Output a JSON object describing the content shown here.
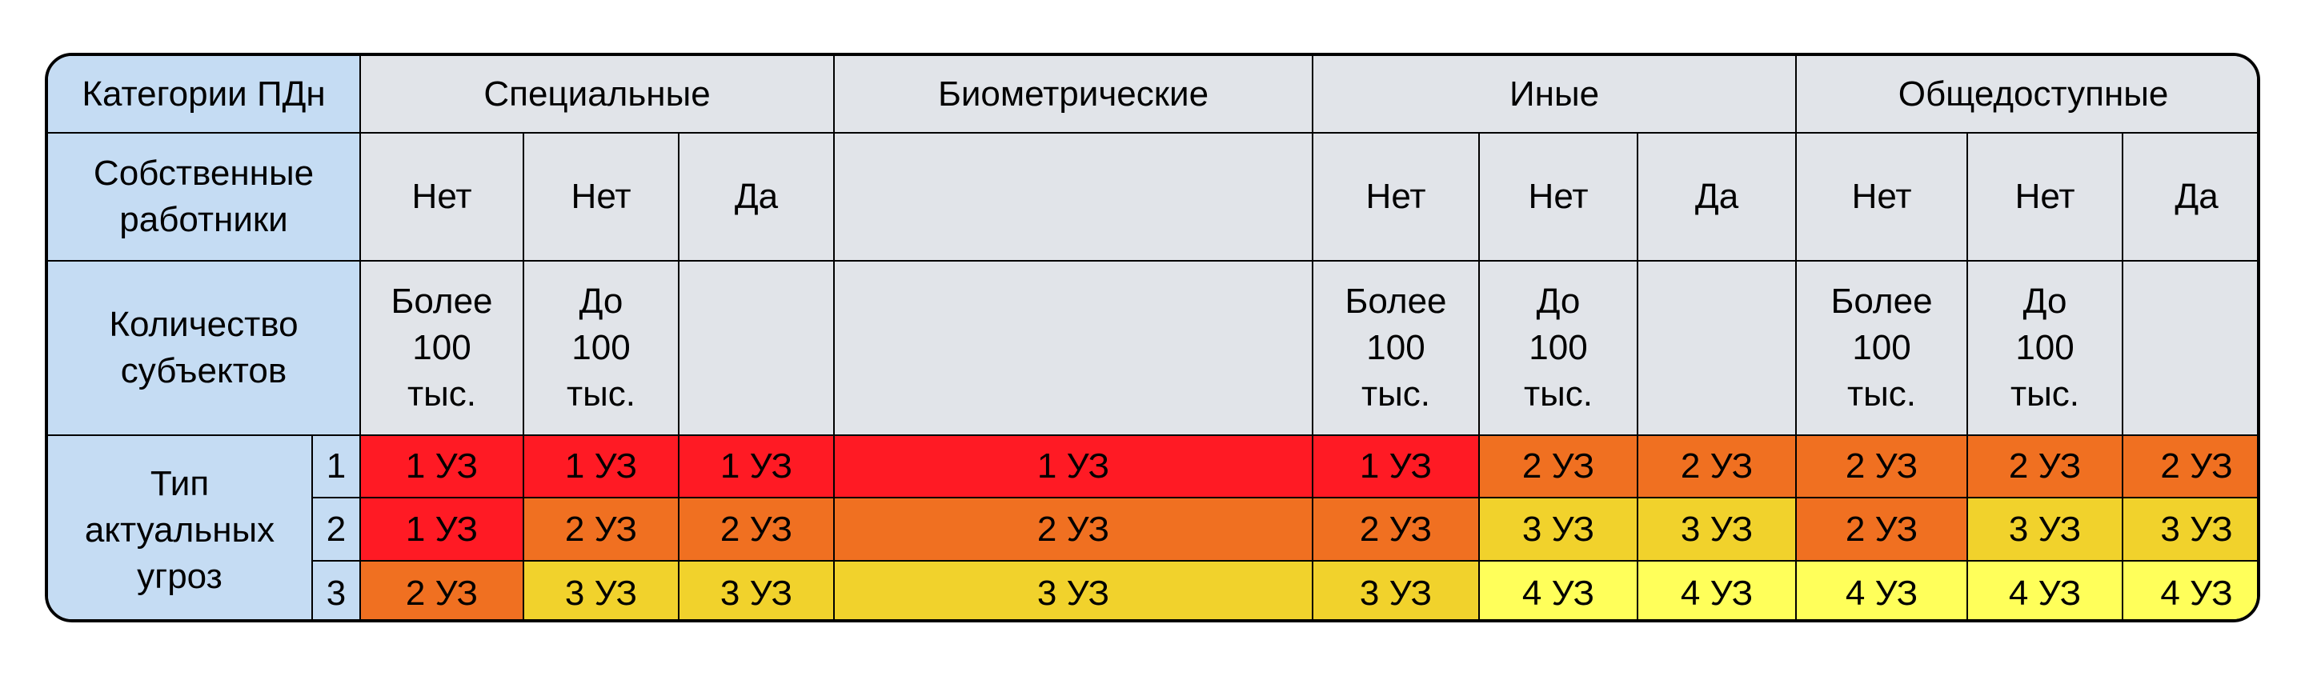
{
  "header": {
    "categories_label": "Категории ПДн",
    "categories": [
      "Специальные",
      "Биометрические",
      "Иные",
      "Общедоступные"
    ],
    "employees_label": "Собственные\nработники",
    "employees": [
      "Нет",
      "Нет",
      "Да",
      "",
      "Нет",
      "Нет",
      "Да",
      "Нет",
      "Нет",
      "Да"
    ],
    "subjects_label": "Количество\nсубъектов",
    "subjects": [
      "Более\n100\nтыс.",
      "До\n100\nтыс.",
      "",
      "",
      "Более\n100\nтыс.",
      "До\n100\nтыс.",
      "",
      "Более\n100\nтыс.",
      "До\n100\nтыс.",
      ""
    ],
    "threat_label": "Тип\nактуальных\nугроз"
  },
  "rows": [
    {
      "type": "1",
      "levels": [
        "1 УЗ",
        "1 УЗ",
        "1 УЗ",
        "1 УЗ",
        "1 УЗ",
        "2 УЗ",
        "2 УЗ",
        "2 УЗ",
        "2 УЗ",
        "2 УЗ"
      ]
    },
    {
      "type": "2",
      "levels": [
        "1 УЗ",
        "2 УЗ",
        "2 УЗ",
        "2 УЗ",
        "2 УЗ",
        "3 УЗ",
        "3 УЗ",
        "2 УЗ",
        "3 УЗ",
        "3 УЗ"
      ]
    },
    {
      "type": "3",
      "levels": [
        "2 УЗ",
        "3 УЗ",
        "3 УЗ",
        "3 УЗ",
        "3 УЗ",
        "4 УЗ",
        "4 УЗ",
        "4 УЗ",
        "4 УЗ",
        "4 УЗ"
      ]
    }
  ],
  "colors": {
    "1 УЗ": "#ff1a24",
    "2 УЗ": "#f07021",
    "3 УЗ": "#f1d22c",
    "4 УЗ": "#ffff5a",
    "header_blue": "#c5dcf3",
    "header_gray": "#e1e4e9"
  }
}
